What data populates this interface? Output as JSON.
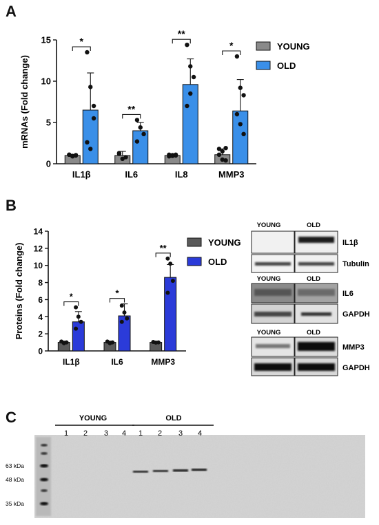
{
  "panels": {
    "a_label": "A",
    "b_label": "B",
    "c_label": "C"
  },
  "colors": {
    "young_a": "#8a8a8a",
    "old_a": "#3a8fe8",
    "young_b": "#5a5a5a",
    "old_b": "#2b3bd9"
  },
  "chart_data": [
    {
      "type": "bar",
      "panel": "A",
      "categories": [
        "IL1β",
        "IL6",
        "IL8",
        "MMP3"
      ],
      "ylabel": "mRNAs (Fold change)",
      "ylim": [
        0,
        15
      ],
      "yticks": [
        0,
        5,
        10,
        15
      ],
      "legend": {
        "placement": "right",
        "entries": [
          "YOUNG",
          "OLD"
        ]
      },
      "series": [
        {
          "name": "YOUNG",
          "values": [
            1.0,
            1.0,
            1.0,
            1.1
          ],
          "errors": [
            0.1,
            0.5,
            0.15,
            0.7
          ],
          "points": [
            [
              1.1,
              0.9,
              1.0,
              1.1,
              0.95,
              1.05
            ],
            [
              1.2,
              0.6,
              0.8,
              1.3
            ],
            [
              1.1,
              0.95,
              1.0,
              0.9,
              1.05,
              1.1
            ],
            [
              1.8,
              1.5,
              0.4,
              1.1,
              0.5,
              1.9
            ]
          ]
        },
        {
          "name": "OLD",
          "values": [
            6.5,
            4.0,
            9.6,
            6.4
          ],
          "errors": [
            4.5,
            1.0,
            3.1,
            3.8
          ],
          "points": [
            [
              13.5,
              9.3,
              5.5,
              2.6,
              1.8,
              7.0
            ],
            [
              5.3,
              4.4,
              3.6,
              2.7
            ],
            [
              14.4,
              11.8,
              10.5,
              7.0,
              8.5
            ],
            [
              13.0,
              9.2,
              8.3,
              6.0,
              4.8,
              3.6
            ]
          ]
        }
      ],
      "significance": [
        "*",
        "**",
        "**",
        "*"
      ]
    },
    {
      "type": "bar",
      "panel": "B",
      "categories": [
        "IL1β",
        "IL6",
        "MMP3"
      ],
      "ylabel": "Proteins (Fold change)",
      "ylim": [
        0,
        14
      ],
      "yticks": [
        0,
        2,
        4,
        6,
        8,
        10,
        12,
        14
      ],
      "legend": {
        "placement": "right",
        "entries": [
          "YOUNG",
          "OLD"
        ]
      },
      "series": [
        {
          "name": "YOUNG",
          "values": [
            1.0,
            1.0,
            1.0
          ],
          "errors": [
            0.15,
            0.15,
            0.08
          ],
          "points": [
            [
              1.1,
              0.9,
              1.0
            ],
            [
              1.1,
              0.9,
              1.0
            ],
            [
              1.05,
              0.98,
              1.0
            ]
          ]
        },
        {
          "name": "OLD",
          "values": [
            3.4,
            4.1,
            8.6
          ],
          "errors": [
            1.2,
            1.4,
            1.5
          ],
          "points": [
            [
              5.1,
              4.0,
              3.4,
              2.6
            ],
            [
              5.3,
              4.5,
              3.8,
              3.4
            ],
            [
              10.8,
              10.2,
              8.2,
              6.8
            ]
          ]
        }
      ],
      "significance": [
        "*",
        "*",
        "**"
      ]
    }
  ],
  "blots": {
    "group1": {
      "col_labels": [
        "YOUNG",
        "OLD"
      ],
      "rows": [
        "IL1β",
        "Tubulin"
      ]
    },
    "group2": {
      "col_labels": [
        "YOUNG",
        "OLD"
      ],
      "rows": [
        "IL6",
        "GAPDH"
      ]
    },
    "group3": {
      "col_labels": [
        "YOUNG",
        "OLD"
      ],
      "rows": [
        "MMP3",
        "GAPDH"
      ]
    }
  },
  "gel": {
    "group_labels": [
      "YOUNG",
      "OLD"
    ],
    "lanes": [
      "1",
      "2",
      "3",
      "4",
      "1",
      "2",
      "3",
      "4"
    ],
    "markers": [
      "63 kDa",
      "48 kDa",
      "35 kDa"
    ]
  }
}
